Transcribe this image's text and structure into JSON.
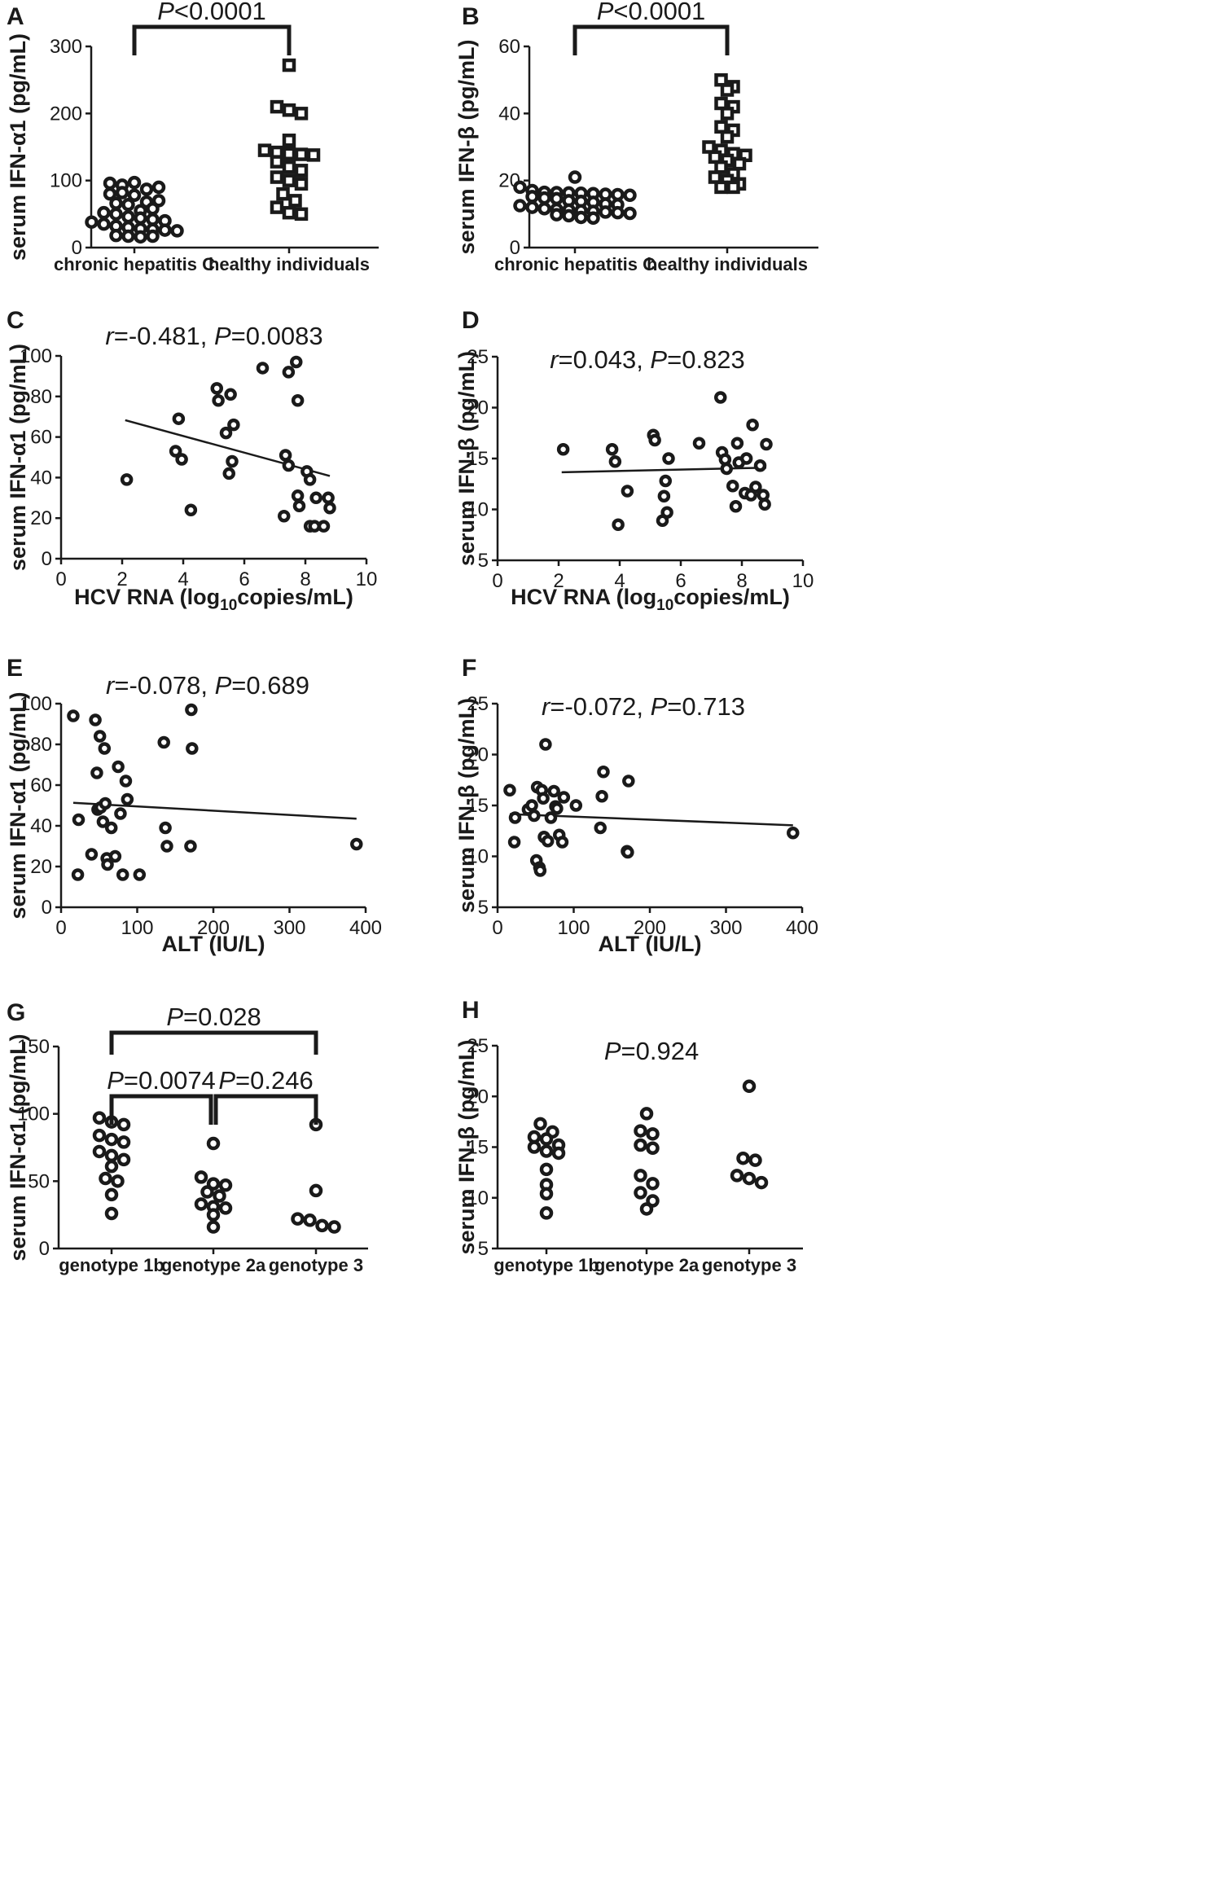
{
  "chart_data": [
    {
      "panel": "A",
      "type": "scatter",
      "subtype": "dot_plot",
      "ylabel": "serum IFN-α1 (pg/mL)",
      "ylim": [
        0,
        300
      ],
      "yticks": [
        0,
        100,
        200,
        300
      ],
      "categories": [
        "chronic hepatitis C",
        "healthy individuals"
      ],
      "markers": [
        "circle",
        "square"
      ],
      "series": [
        {
          "name": "chronic hepatitis C",
          "values": [
            96,
            93,
            97,
            87,
            90,
            80,
            82,
            78,
            68,
            66,
            70,
            64,
            55,
            58,
            52,
            50,
            46,
            44,
            42,
            40,
            38,
            35,
            32,
            30,
            28,
            27,
            26,
            25,
            18,
            17,
            16,
            17
          ]
        },
        {
          "name": "healthy individuals",
          "values": [
            272,
            210,
            205,
            200,
            160,
            145,
            142,
            140,
            139,
            138,
            128,
            120,
            115,
            105,
            100,
            95,
            80,
            70,
            60,
            52,
            50
          ]
        }
      ],
      "brackets": [
        {
          "from": 0,
          "to": 1,
          "label_italic": "P",
          "label_rest": "<0.0001"
        }
      ]
    },
    {
      "panel": "B",
      "type": "scatter",
      "subtype": "dot_plot",
      "ylabel": "serum IFN-β (pg/mL)",
      "ylim": [
        0,
        60
      ],
      "yticks": [
        0,
        20,
        40,
        60
      ],
      "categories": [
        "chronic hepatitis C",
        "healthy individuals"
      ],
      "markers": [
        "circle",
        "square"
      ],
      "series": [
        {
          "name": "chronic hepatitis C",
          "values": [
            21,
            18,
            17,
            16.5,
            16.4,
            16.3,
            16.2,
            16.1,
            15.9,
            15.8,
            15.6,
            15.2,
            14.8,
            14.6,
            14,
            13.8,
            13.5,
            13,
            12.8,
            12.5,
            12,
            11.6,
            11.4,
            11.2,
            11,
            10.8,
            10.6,
            10.4,
            10.2,
            9.8,
            9.5,
            9,
            8.8
          ]
        },
        {
          "name": "healthy individuals",
          "values": [
            50,
            48,
            47,
            43,
            42,
            40,
            36,
            35,
            33,
            30,
            29,
            28,
            27.5,
            27,
            26,
            25,
            24,
            22,
            21,
            20,
            19,
            18,
            18
          ]
        }
      ],
      "brackets": [
        {
          "from": 0,
          "to": 1,
          "label_italic": "P",
          "label_rest": "<0.0001"
        }
      ]
    },
    {
      "panel": "C",
      "type": "scatter",
      "annotation": {
        "r_italic": "r",
        "r_rest": "=-0.481, ",
        "p_italic": "P",
        "p_rest": "=0.0083"
      },
      "xlabel_pre": "HCV RNA (log",
      "xlabel_sub": "10",
      "xlabel_post": "copies/mL)",
      "ylabel": "serum IFN-α1 (pg/mL)",
      "xlim": [
        0,
        10
      ],
      "xticks": [
        0,
        2,
        4,
        6,
        8,
        10
      ],
      "ylim": [
        0,
        100
      ],
      "yticks": [
        0,
        20,
        40,
        60,
        80,
        100
      ],
      "points": [
        [
          2.15,
          39
        ],
        [
          3.75,
          53
        ],
        [
          3.85,
          69
        ],
        [
          3.95,
          49
        ],
        [
          4.25,
          24
        ],
        [
          5.1,
          84
        ],
        [
          5.15,
          78
        ],
        [
          5.4,
          62
        ],
        [
          5.5,
          42
        ],
        [
          5.55,
          81
        ],
        [
          5.6,
          48
        ],
        [
          5.65,
          66
        ],
        [
          6.6,
          94
        ],
        [
          7.3,
          21
        ],
        [
          7.35,
          51
        ],
        [
          7.45,
          92
        ],
        [
          7.45,
          46
        ],
        [
          7.7,
          97
        ],
        [
          7.75,
          78
        ],
        [
          7.75,
          31
        ],
        [
          7.8,
          26
        ],
        [
          8.05,
          43
        ],
        [
          8.15,
          39
        ],
        [
          8.15,
          16
        ],
        [
          8.3,
          16
        ],
        [
          8.35,
          30
        ],
        [
          8.6,
          16
        ],
        [
          8.75,
          30
        ],
        [
          8.8,
          25
        ]
      ],
      "regression": {
        "x": [
          2.1,
          8.8
        ],
        "y": [
          68.3,
          40.8
        ]
      }
    },
    {
      "panel": "D",
      "type": "scatter",
      "annotation": {
        "r_italic": "r",
        "r_rest": "=0.043, ",
        "p_italic": "P",
        "p_rest": "=0.823"
      },
      "xlabel_pre": "HCV RNA (log",
      "xlabel_sub": "10",
      "xlabel_post": "copies/mL)",
      "ylabel": "serum IFN-β (pg/mL)",
      "xlim": [
        0,
        10
      ],
      "xticks": [
        0,
        2,
        4,
        6,
        8,
        10
      ],
      "ylim": [
        5,
        25
      ],
      "yticks": [
        5,
        10,
        15,
        20,
        25
      ],
      "points": [
        [
          2.15,
          15.9
        ],
        [
          3.75,
          15.9
        ],
        [
          3.85,
          14.7
        ],
        [
          3.95,
          8.5
        ],
        [
          4.25,
          11.8
        ],
        [
          5.1,
          17.3
        ],
        [
          5.15,
          16.8
        ],
        [
          5.4,
          8.9
        ],
        [
          5.45,
          11.3
        ],
        [
          5.5,
          12.8
        ],
        [
          5.55,
          9.7
        ],
        [
          5.6,
          15
        ],
        [
          6.6,
          16.5
        ],
        [
          7.3,
          21
        ],
        [
          7.35,
          15.6
        ],
        [
          7.45,
          14.9
        ],
        [
          7.5,
          14
        ],
        [
          7.7,
          12.3
        ],
        [
          7.8,
          10.3
        ],
        [
          7.85,
          16.5
        ],
        [
          7.9,
          14.6
        ],
        [
          8.1,
          11.6
        ],
        [
          8.15,
          15
        ],
        [
          8.3,
          11.4
        ],
        [
          8.35,
          18.3
        ],
        [
          8.45,
          12.2
        ],
        [
          8.6,
          14.3
        ],
        [
          8.7,
          11.4
        ],
        [
          8.75,
          10.5
        ],
        [
          8.8,
          16.4
        ]
      ],
      "regression": {
        "x": [
          2.1,
          8.8
        ],
        "y": [
          13.65,
          14.1
        ]
      }
    },
    {
      "panel": "E",
      "type": "scatter",
      "annotation": {
        "r_italic": "r",
        "r_rest": "=-0.078, ",
        "p_italic": "P",
        "p_rest": "=0.689"
      },
      "xlabel": "ALT (IU/L)",
      "ylabel": "serum IFN-α1 (pg/mL)",
      "xlim": [
        0,
        400
      ],
      "xticks": [
        0,
        100,
        200,
        300,
        400
      ],
      "ylim": [
        0,
        100
      ],
      "yticks": [
        0,
        20,
        40,
        60,
        80,
        100
      ],
      "points": [
        [
          16,
          94
        ],
        [
          22,
          16
        ],
        [
          23,
          43
        ],
        [
          40,
          26
        ],
        [
          45,
          92
        ],
        [
          47,
          66
        ],
        [
          48,
          48
        ],
        [
          51,
          84
        ],
        [
          52,
          49
        ],
        [
          55,
          42
        ],
        [
          57,
          78
        ],
        [
          58,
          51
        ],
        [
          60,
          24
        ],
        [
          61,
          21
        ],
        [
          66,
          39
        ],
        [
          71,
          25
        ],
        [
          75,
          69
        ],
        [
          78,
          46
        ],
        [
          81,
          16
        ],
        [
          85,
          62
        ],
        [
          87,
          53
        ],
        [
          103,
          16
        ],
        [
          135,
          81
        ],
        [
          137,
          39
        ],
        [
          139,
          30
        ],
        [
          170,
          30
        ],
        [
          171,
          97
        ],
        [
          172,
          78
        ],
        [
          388,
          31
        ]
      ],
      "regression": {
        "x": [
          16,
          388
        ],
        "y": [
          51.3,
          43.5
        ]
      }
    },
    {
      "panel": "F",
      "type": "scatter",
      "annotation": {
        "r_italic": "r",
        "r_rest": "=-0.072, ",
        "p_italic": "P",
        "p_rest": "=0.713"
      },
      "xlabel": "ALT (IU/L)",
      "ylabel": "serum IFN-β (pg/mL)",
      "xlim": [
        0,
        400
      ],
      "xticks": [
        0,
        100,
        200,
        300,
        400
      ],
      "ylim": [
        5,
        25
      ],
      "yticks": [
        5,
        10,
        15,
        20,
        25
      ],
      "points": [
        [
          16,
          16.5
        ],
        [
          22,
          11.4
        ],
        [
          23,
          13.8
        ],
        [
          40,
          14.6
        ],
        [
          45,
          15
        ],
        [
          48,
          14
        ],
        [
          51,
          9.6
        ],
        [
          52,
          16.8
        ],
        [
          55,
          8.9
        ],
        [
          56,
          8.6
        ],
        [
          58,
          16.5
        ],
        [
          60,
          15.7
        ],
        [
          61,
          11.9
        ],
        [
          63,
          21
        ],
        [
          66,
          11.5
        ],
        [
          70,
          13.8
        ],
        [
          74,
          16.4
        ],
        [
          76,
          14.9
        ],
        [
          78,
          14.7
        ],
        [
          81,
          12.1
        ],
        [
          85,
          11.4
        ],
        [
          87,
          15.8
        ],
        [
          103,
          15
        ],
        [
          135,
          12.8
        ],
        [
          137,
          15.9
        ],
        [
          139,
          18.3
        ],
        [
          170,
          10.5
        ],
        [
          171,
          10.4
        ],
        [
          172,
          17.4
        ],
        [
          388,
          12.3
        ]
      ],
      "regression": {
        "x": [
          16,
          388
        ],
        "y": [
          14.15,
          13.05
        ]
      }
    },
    {
      "panel": "G",
      "type": "scatter",
      "subtype": "dot_plot",
      "ylabel": "serum IFN-α1 (pg/mL)",
      "ylim": [
        0,
        150
      ],
      "yticks": [
        0,
        50,
        100,
        150
      ],
      "categories": [
        "genotype 1b",
        "genotype 2a",
        "genotype 3"
      ],
      "markers": [
        "circle",
        "circle",
        "circle"
      ],
      "series": [
        {
          "name": "genotype 1b",
          "values": [
            97,
            94,
            92,
            84,
            81,
            79,
            72,
            69,
            66,
            61,
            52,
            50,
            40,
            26
          ]
        },
        {
          "name": "genotype 2a",
          "values": [
            78,
            53,
            48,
            47,
            42,
            39,
            33,
            31,
            30,
            25,
            16
          ]
        },
        {
          "name": "genotype 3",
          "values": [
            92,
            43,
            22,
            21,
            17,
            16
          ]
        }
      ],
      "brackets": [
        {
          "from": 0,
          "to": 1,
          "label_italic": "P",
          "label_rest": "=0.0074"
        },
        {
          "from": 1,
          "to": 2,
          "label_italic": "P",
          "label_rest": "=0.246"
        },
        {
          "from": 0,
          "to": 2,
          "label_italic": "P",
          "label_rest": "=0.028"
        }
      ]
    },
    {
      "panel": "H",
      "type": "scatter",
      "subtype": "dot_plot",
      "annotation": {
        "p_italic": "P",
        "p_rest": "=0.924"
      },
      "ylabel": "serum IFN-β (pg/mL)",
      "ylim": [
        5,
        25
      ],
      "yticks": [
        5,
        10,
        15,
        20,
        25
      ],
      "categories": [
        "genotype 1b",
        "genotype 2a",
        "genotype 3"
      ],
      "markers": [
        "circle",
        "circle",
        "circle"
      ],
      "series": [
        {
          "name": "genotype 1b",
          "values": [
            17.3,
            16.5,
            16,
            15.8,
            15.2,
            15,
            14.6,
            14.4,
            12.8,
            11.3,
            10.4,
            8.5
          ]
        },
        {
          "name": "genotype 2a",
          "values": [
            18.3,
            16.6,
            16.3,
            15.2,
            14.9,
            12.2,
            11.4,
            10.5,
            9.7,
            8.9
          ]
        },
        {
          "name": "genotype 3",
          "values": [
            21,
            13.9,
            13.7,
            12.2,
            11.9,
            11.5
          ]
        }
      ]
    }
  ]
}
